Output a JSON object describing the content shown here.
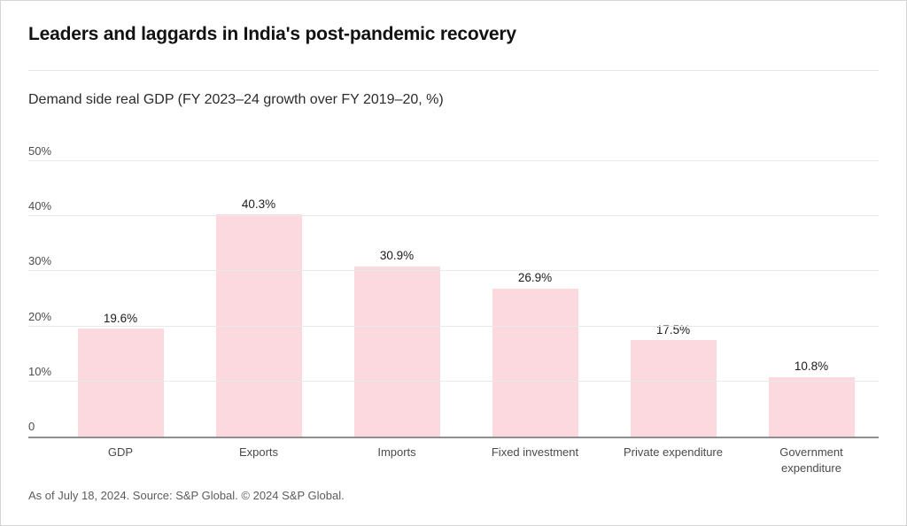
{
  "chart_data": {
    "type": "bar",
    "title": "Leaders and laggards in India's post-pandemic recovery",
    "subtitle": "Demand side real GDP (FY 2023–24 growth over FY 2019–20, %)",
    "categories": [
      "GDP",
      "Exports",
      "Imports",
      "Fixed investment",
      "Private expenditure",
      "Government expenditure"
    ],
    "values": [
      19.6,
      40.3,
      30.9,
      26.9,
      17.5,
      10.8
    ],
    "value_labels": [
      "19.6%",
      "40.3%",
      "30.9%",
      "26.9%",
      "17.5%",
      "10.8%"
    ],
    "x_tick_labels": [
      "GDP",
      "Exports",
      "Imports",
      "Fixed investment",
      "Private expenditure",
      "Government\nexpenditure"
    ],
    "yticks": [
      {
        "value": 0,
        "label": "0"
      },
      {
        "value": 10,
        "label": "10%"
      },
      {
        "value": 20,
        "label": "20%"
      },
      {
        "value": 30,
        "label": "30%"
      },
      {
        "value": 40,
        "label": "40%"
      },
      {
        "value": 50,
        "label": "50%"
      }
    ],
    "ylim": [
      0,
      50
    ],
    "xlabel": "",
    "ylabel": "",
    "grid": true,
    "legend": false,
    "bar_color": "#fcd9de",
    "footnote": "As of July 18, 2024. Source: S&P Global. © 2024 S&P Global."
  }
}
